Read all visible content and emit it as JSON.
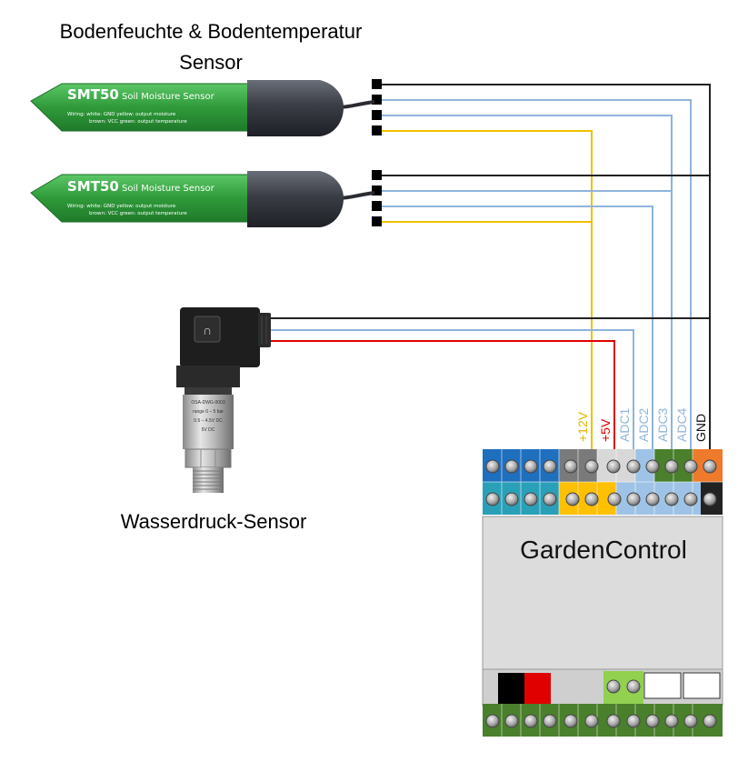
{
  "title_line1": "Bodenfeuchte & Bodentemperatur",
  "title_line2": "Sensor",
  "pressure_label": "Wasserdruck-Sensor",
  "controller_label": "GardenControl",
  "probes": [
    {
      "model": "SMT50",
      "name": "Soil Moisture Sensor",
      "wiring_line1": "Wiring:  white:  GND    yellow: output moisture",
      "wiring_line2": "brown:  VCC    green:  output temperature"
    },
    {
      "model": "SMT50",
      "name": "Soil Moisture Sensor",
      "wiring_line1": "Wiring:  white:  GND    yellow: output moisture",
      "wiring_line2": "brown:  VCC    green:  output temperature"
    }
  ],
  "terminal_labels": [
    {
      "text": "+12V",
      "color": "#e8b400"
    },
    {
      "text": "+5V",
      "color": "#e00000"
    },
    {
      "text": "ADC1",
      "color": "#8fb4dc"
    },
    {
      "text": "ADC2",
      "color": "#8fb4dc"
    },
    {
      "text": "ADC3",
      "color": "#8fb4dc"
    },
    {
      "text": "ADC4",
      "color": "#8fb4dc"
    },
    {
      "text": "GND",
      "color": "#111111"
    }
  ],
  "colors": {
    "wire_black": "#222222",
    "wire_lightblue": "#8fb4dc",
    "wire_yellow": "#f0c000",
    "wire_red": "#e00000",
    "probe_green": "#3fae49",
    "controller_body": "#dcdcdc",
    "terminal_blue": "#1f6fbf",
    "terminal_teal": "#2aa0b8",
    "terminal_gray": "#7a7a7a",
    "terminal_yellow": "#ffc000",
    "terminal_lightblue": "#9ec3e6",
    "terminal_green": "#4a7f2c",
    "terminal_orange": "#ee7a2c",
    "terminal_lightgreen": "#92d050"
  }
}
